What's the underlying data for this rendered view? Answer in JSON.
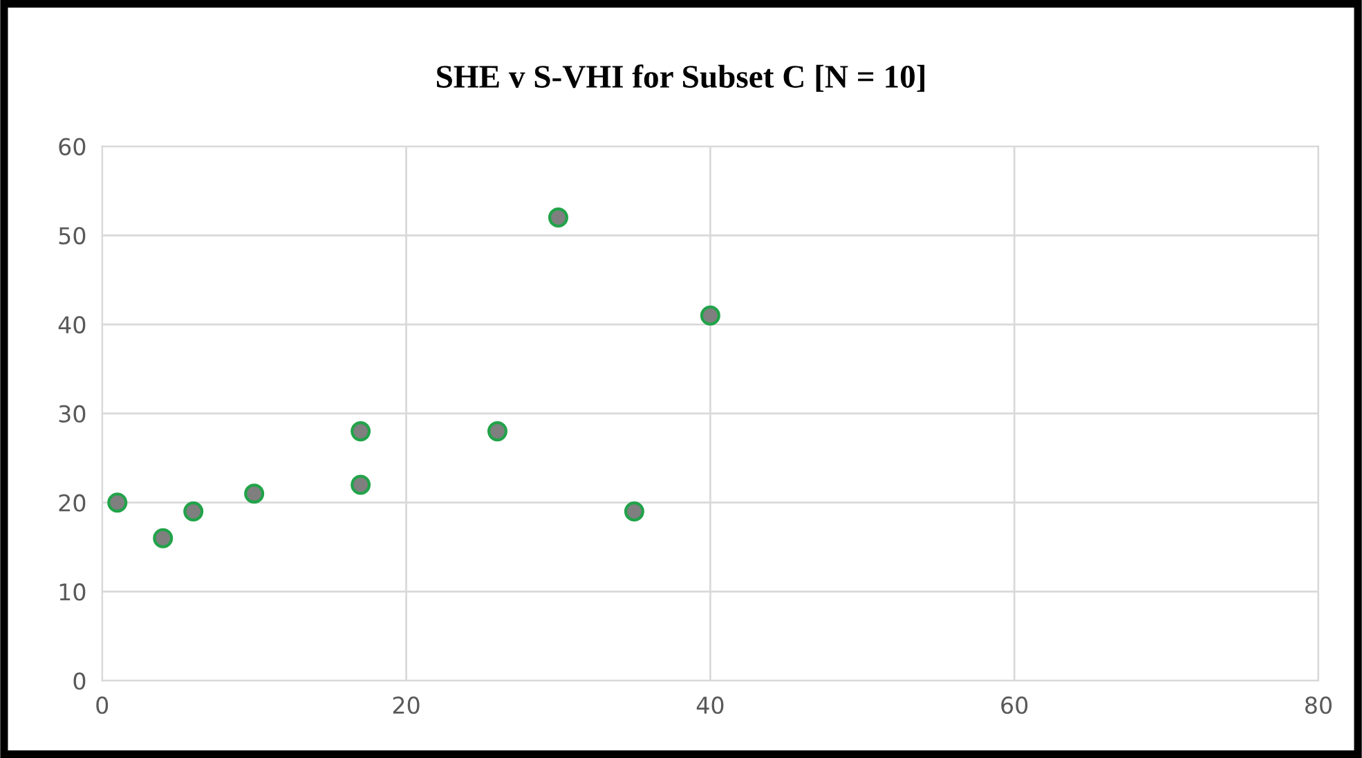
{
  "chart_data": {
    "type": "scatter",
    "title": "SHE v S-VHI for Subset C [N = 10]",
    "series": [
      {
        "color": "#7f7f7f",
        "x": [
          1,
          4,
          6,
          10,
          17,
          17,
          26,
          30,
          35,
          40
        ],
        "values": [
          20,
          16,
          19,
          21,
          28,
          22,
          28,
          52,
          19,
          41
        ]
      }
    ],
    "marker": "circle",
    "xlim": [
      0,
      80
    ],
    "xticks": [
      0,
      20,
      40,
      60,
      80
    ],
    "ylim": [
      0,
      60
    ],
    "yticks": [
      0,
      10,
      20,
      30,
      40,
      50,
      60
    ],
    "grid": true
  }
}
